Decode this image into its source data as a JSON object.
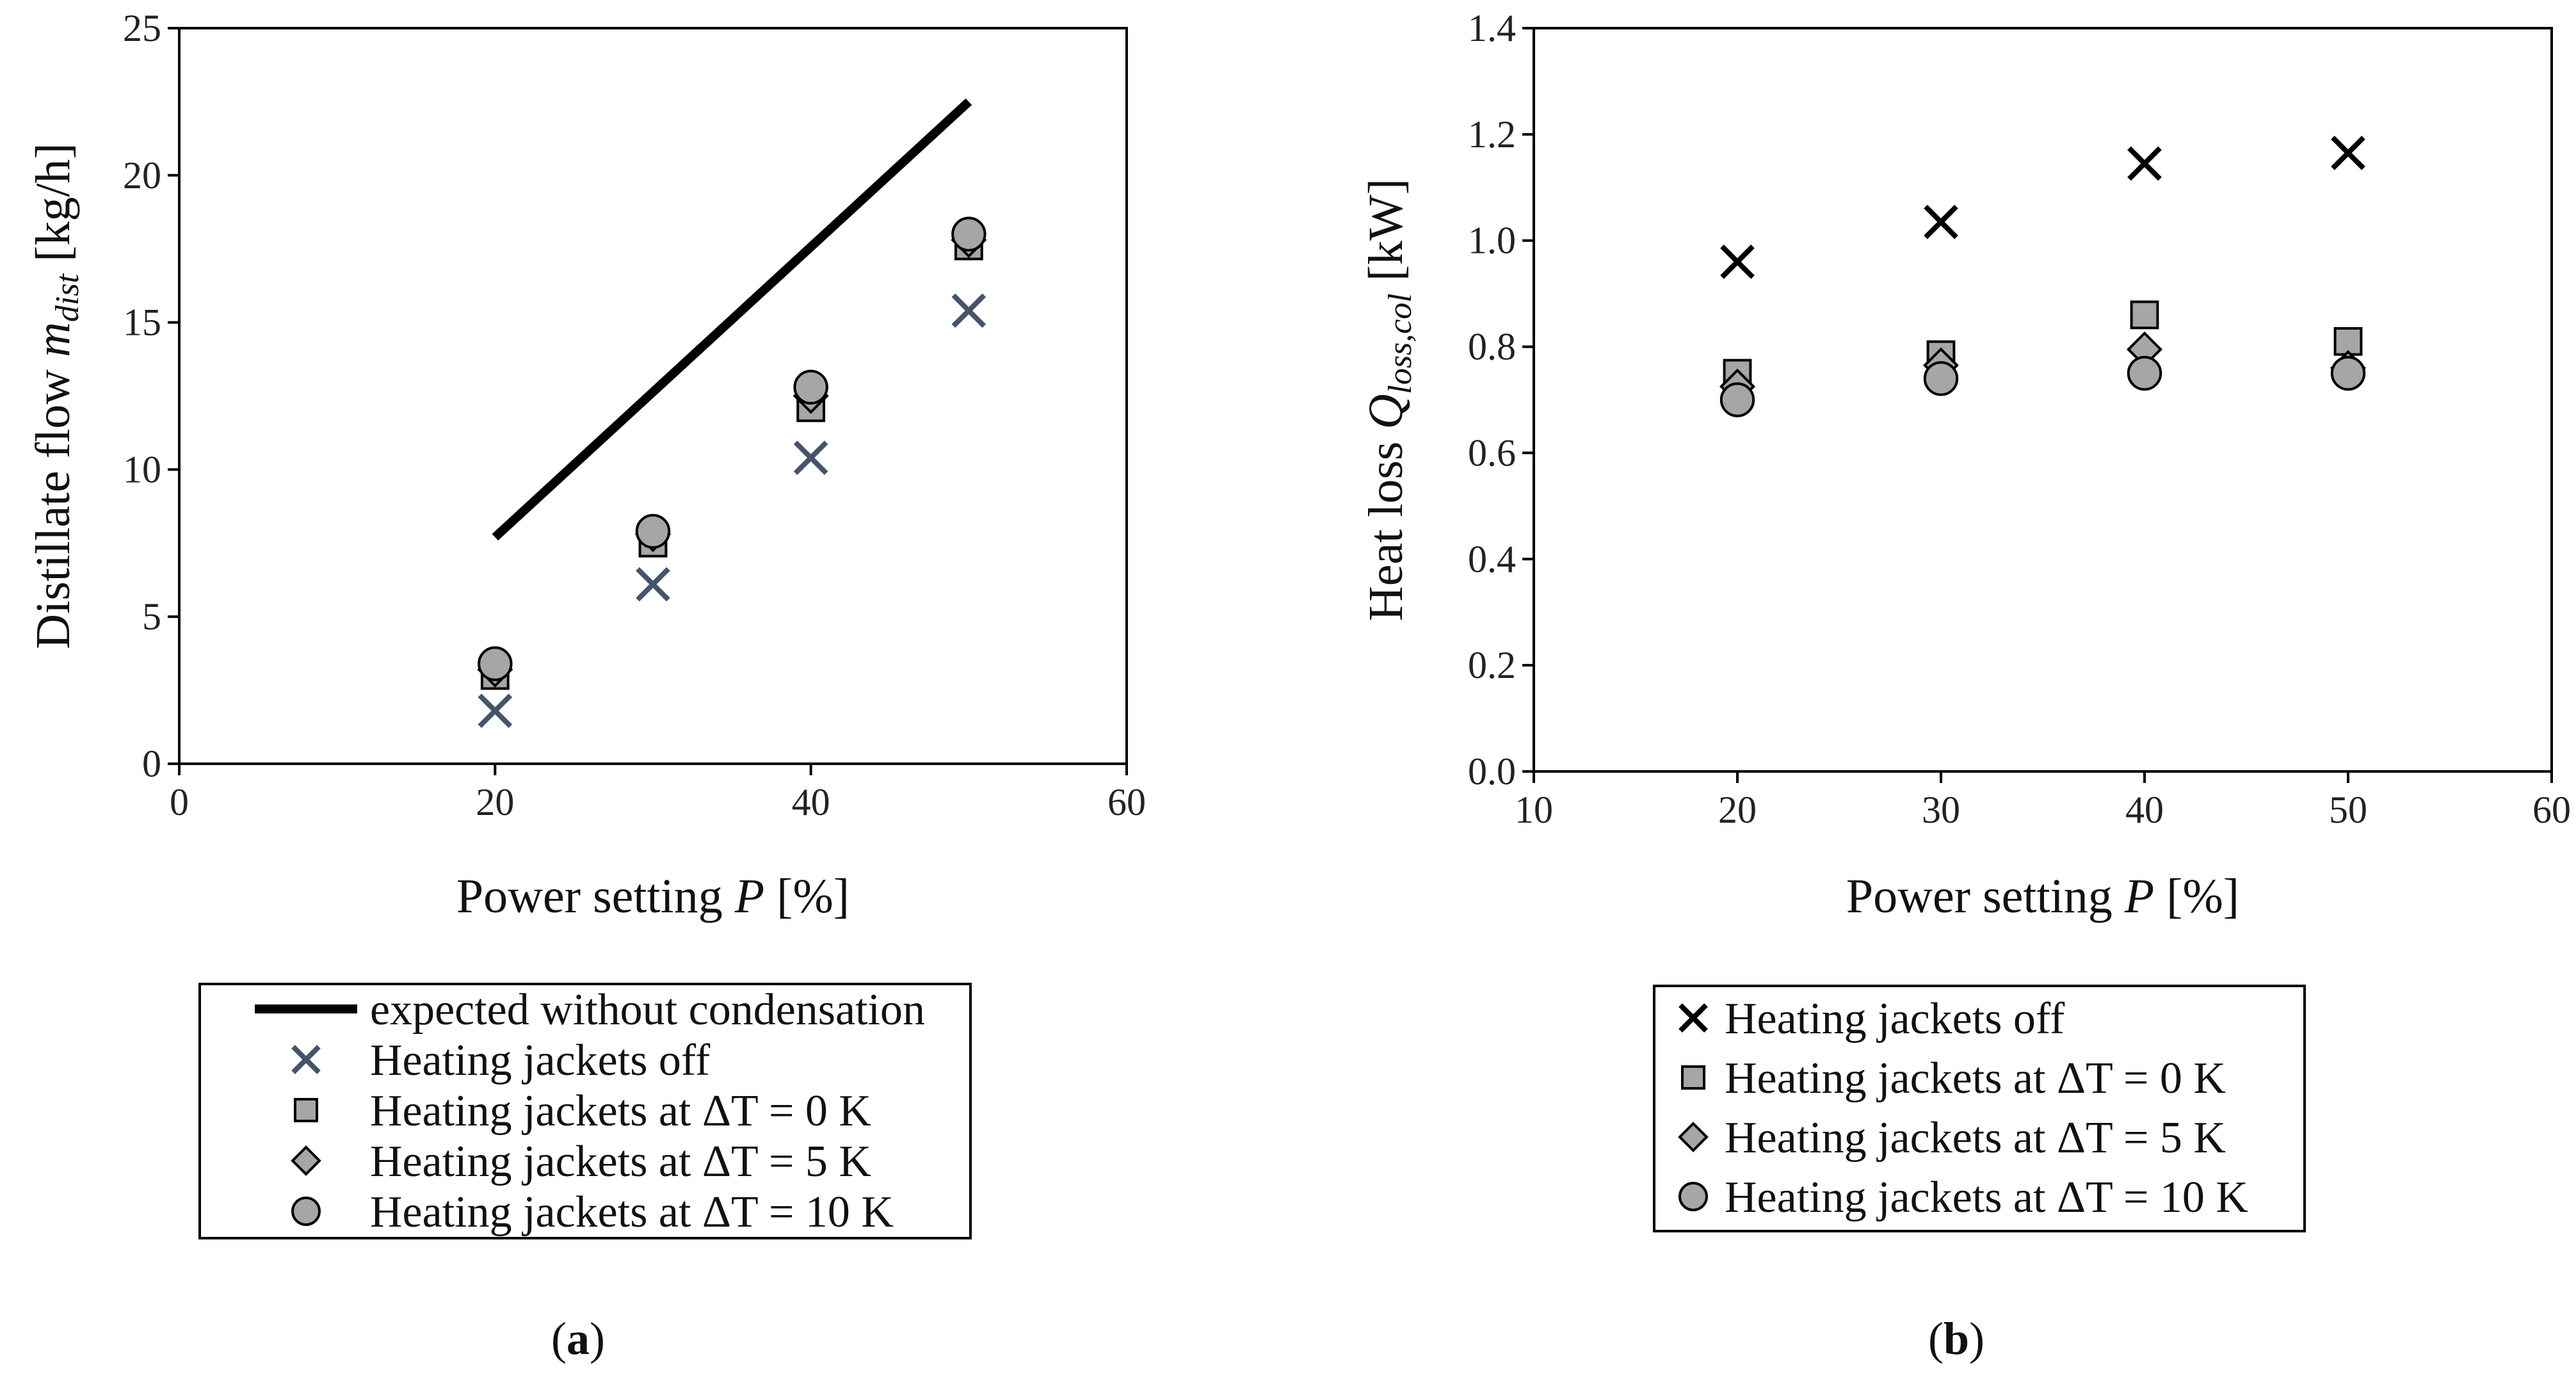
{
  "chart_data": [
    {
      "id": "a",
      "type": "scatter",
      "caption_letter": "a",
      "xlabel_prefix": "Power setting ",
      "xlabel_var": "P",
      "xlabel_unit": " [%]",
      "ylabel_prefix": "Distillate flow ",
      "ylabel_var": "m",
      "ylabel_sub": "dist",
      "ylabel_unit": " [kg/h]",
      "xlim": [
        0,
        60
      ],
      "ylim": [
        0,
        25
      ],
      "xticks": [
        0,
        20,
        40,
        60
      ],
      "yticks": [
        0,
        5,
        10,
        15,
        20,
        25
      ],
      "grid": false,
      "legend_position": "below",
      "series": [
        {
          "name": "expected without condensation",
          "marker": "line",
          "x": [
            20,
            50
          ],
          "y": [
            7.7,
            22.5
          ]
        },
        {
          "name": "Heating jackets off",
          "marker": "x",
          "color": "#44546a",
          "x": [
            20,
            30,
            40,
            50
          ],
          "y": [
            1.8,
            6.1,
            10.4,
            15.4
          ]
        },
        {
          "name": "Heating jackets at ΔT = 0 K",
          "marker": "square",
          "color": "#a6a6a6",
          "x": [
            20,
            30,
            40,
            50
          ],
          "y": [
            3.0,
            7.5,
            12.1,
            17.6
          ]
        },
        {
          "name": "Heating jackets at ΔT = 5 K",
          "marker": "diamond",
          "color": "#a6a6a6",
          "x": [
            20,
            30,
            40,
            50
          ],
          "y": [
            3.2,
            7.8,
            12.5,
            17.8
          ]
        },
        {
          "name": "Heating jackets at ΔT = 10 K",
          "marker": "circle",
          "color": "#a6a6a6",
          "x": [
            20,
            30,
            40,
            50
          ],
          "y": [
            3.4,
            7.9,
            12.8,
            18.0
          ]
        }
      ]
    },
    {
      "id": "b",
      "type": "scatter",
      "caption_letter": "b",
      "xlabel_prefix": "Power setting ",
      "xlabel_var": "P",
      "xlabel_unit": " [%]",
      "ylabel_prefix": "Heat loss ",
      "ylabel_var": "Q",
      "ylabel_sub": "loss,col",
      "ylabel_unit": " [kW]",
      "xlim": [
        10,
        60
      ],
      "ylim": [
        0,
        1.4
      ],
      "xticks": [
        10,
        20,
        30,
        40,
        50,
        60
      ],
      "yticks": [
        0.0,
        0.2,
        0.4,
        0.6,
        0.8,
        1.0,
        1.2,
        1.4
      ],
      "ytick_decimals": 1,
      "grid": false,
      "legend_position": "below",
      "series": [
        {
          "name": "Heating jackets off",
          "marker": "x",
          "color": "#000000",
          "x": [
            20,
            30,
            40,
            50
          ],
          "y": [
            0.96,
            1.035,
            1.145,
            1.165
          ]
        },
        {
          "name": "Heating jackets at ΔT = 0 K",
          "marker": "square",
          "color": "#a6a6a6",
          "x": [
            20,
            30,
            40,
            50
          ],
          "y": [
            0.75,
            0.785,
            0.86,
            0.81
          ]
        },
        {
          "name": "Heating jackets at ΔT = 5 K",
          "marker": "diamond",
          "color": "#a6a6a6",
          "x": [
            20,
            30,
            40,
            50
          ],
          "y": [
            0.725,
            0.765,
            0.795,
            0.76
          ]
        },
        {
          "name": "Heating jackets at ΔT = 10 K",
          "marker": "circle",
          "color": "#a6a6a6",
          "x": [
            20,
            30,
            40,
            50
          ],
          "y": [
            0.7,
            0.74,
            0.75,
            0.75
          ]
        }
      ]
    }
  ]
}
